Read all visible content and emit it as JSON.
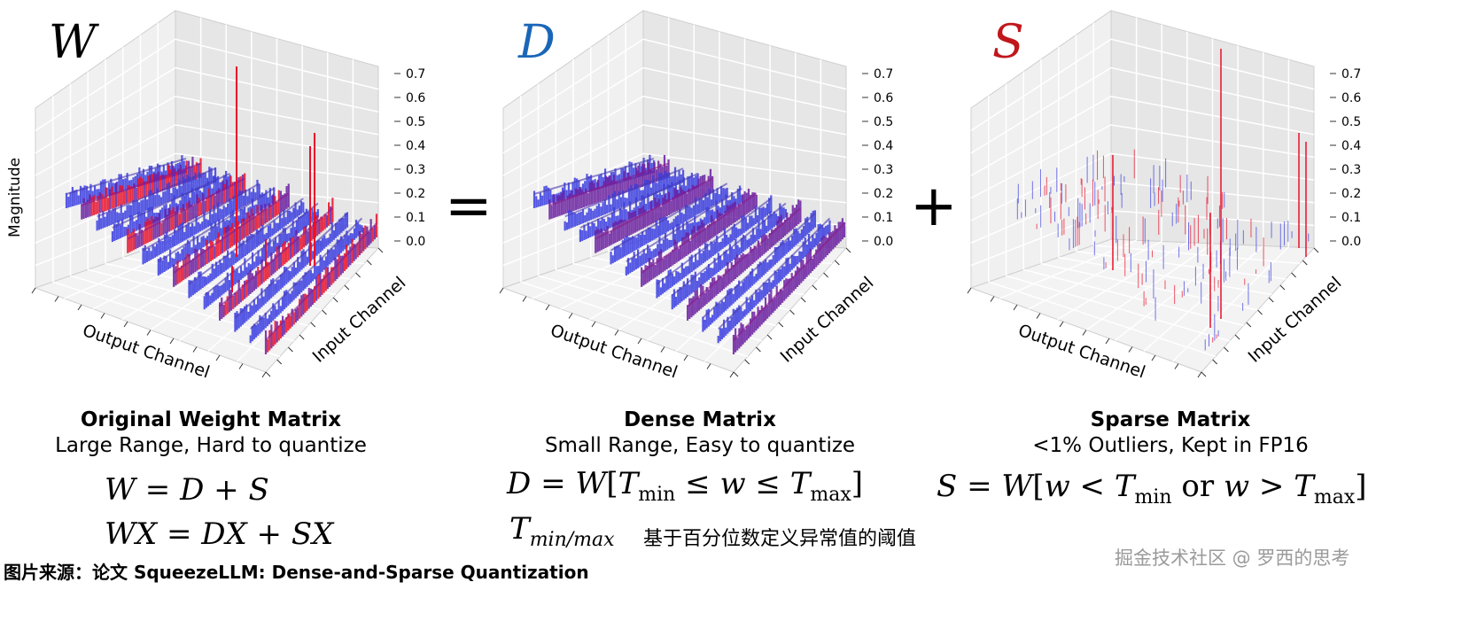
{
  "plots": [
    {
      "symbol": "W",
      "symbol_color": "#000000",
      "title": "Original Weight Matrix",
      "subtitle": "Large Range, Hard to quantize",
      "ylabel": "Magnitude"
    },
    {
      "symbol": "D",
      "symbol_color": "#1a66b8",
      "title": "Dense Matrix",
      "subtitle": "Small Range, Easy to quantize",
      "ylabel": ""
    },
    {
      "symbol": "S",
      "symbol_color": "#c0171c",
      "title": "Sparse Matrix",
      "subtitle": "<1% Outliers, Kept in FP16",
      "ylabel": ""
    }
  ],
  "axes": {
    "x_label": "Output Channel",
    "y_label": "Input Channel",
    "z_ticks": [
      "0.0",
      "0.1",
      "0.2",
      "0.3",
      "0.4",
      "0.5",
      "0.6",
      "0.7"
    ]
  },
  "operators": {
    "equals": "=",
    "plus": "+"
  },
  "formulas": {
    "w_eq": {
      "lhs": "W",
      "rhs1": "D",
      "op": "+",
      "rhs2": "S"
    },
    "wx_eq": {
      "lhs": "WX",
      "rhs1": "DX",
      "op": "+",
      "rhs2": "SX"
    },
    "d_def": {
      "lhs": "D",
      "W": "W",
      "T": "T",
      "min": "min",
      "w": "w",
      "max": "max"
    },
    "s_def": {
      "lhs": "S",
      "W": "W",
      "w": "w",
      "T": "T",
      "min": "min",
      "or": "or",
      "max": "max"
    },
    "t_label": {
      "T": "T",
      "sub": "min/max"
    }
  },
  "threshold_desc": "基于百分位数定义异常值的阈值",
  "caption": "图片来源：论文 SqueezeLLM: Dense-and-Sparse Quantization",
  "watermark": "掘金技术社区 @ 罗西的思考",
  "colors": {
    "blue": "#3a3ee0",
    "red": "#e8102a",
    "purple": "#6a1fa0"
  }
}
